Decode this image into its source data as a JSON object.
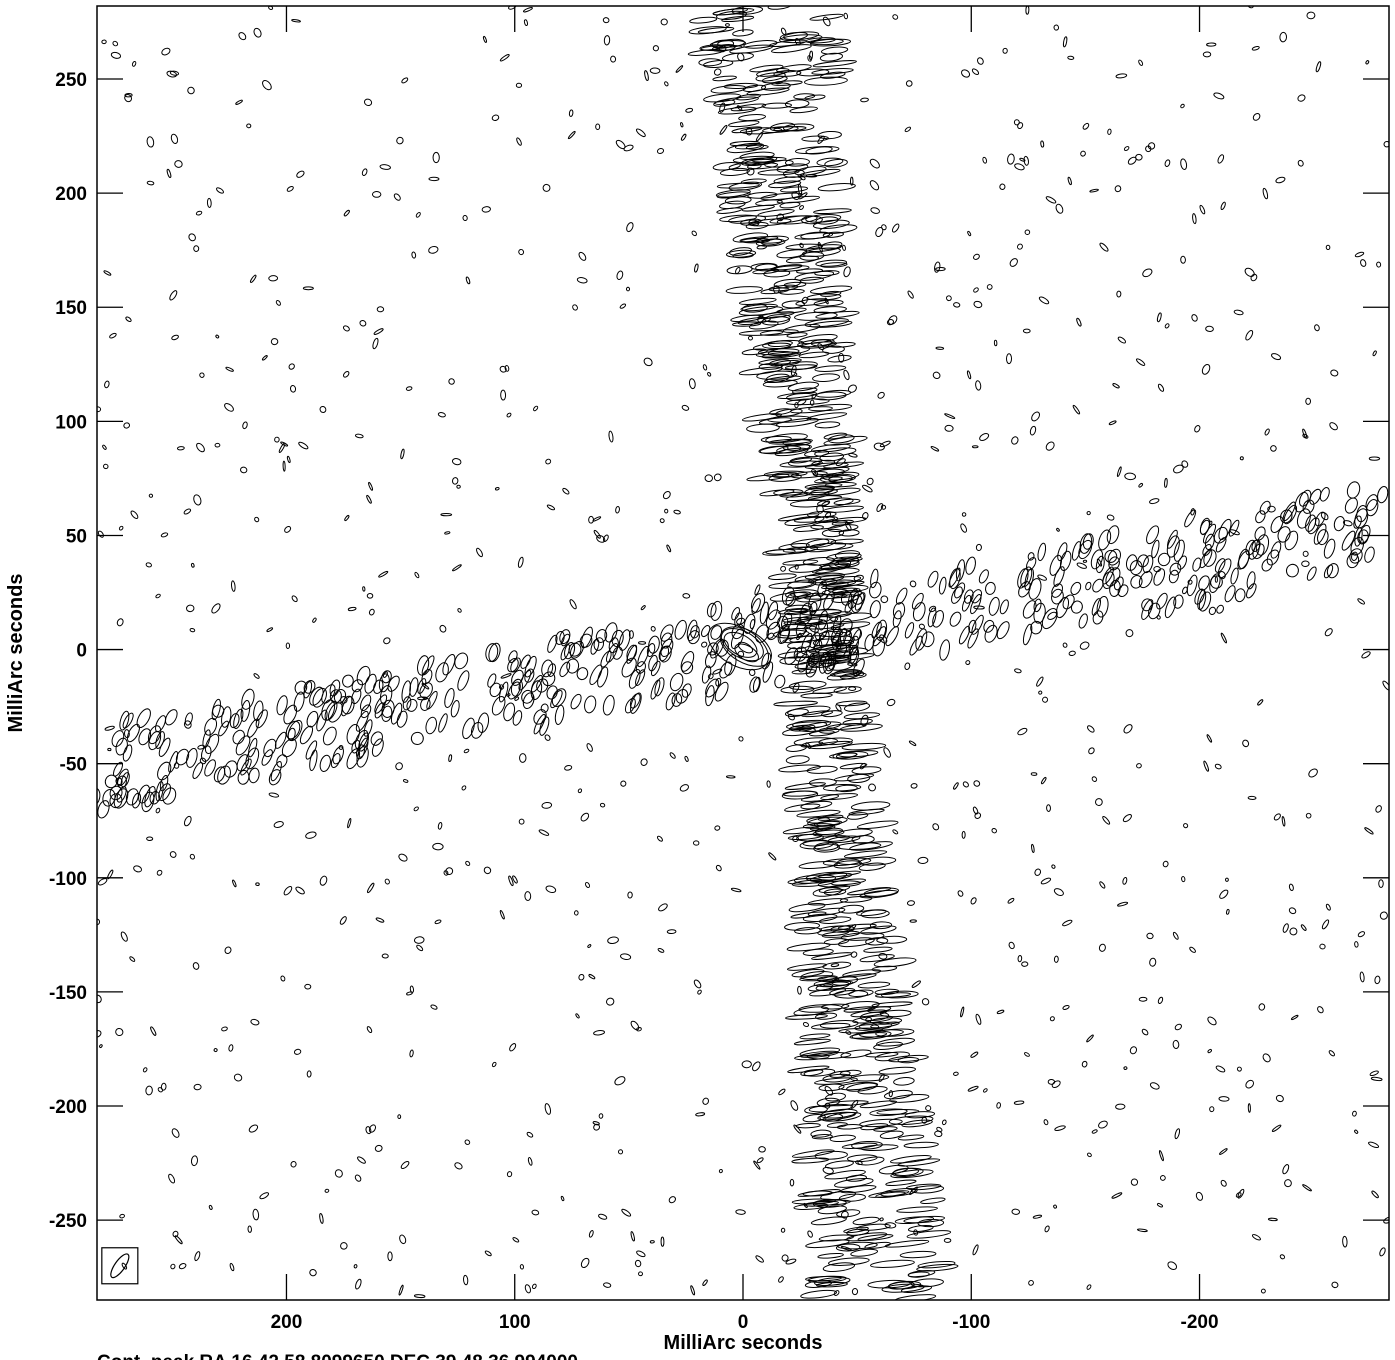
{
  "chart_data": {
    "type": "contour",
    "xlabel": "MilliArc seconds",
    "ylabel": "MilliArc seconds",
    "xlim": [
      283,
      -283
    ],
    "ylim": [
      -285,
      282
    ],
    "xticks": [
      200,
      100,
      0,
      -100,
      -200
    ],
    "xtick_labels": [
      "200",
      "100",
      "0",
      "-100",
      "-200"
    ],
    "yticks": [
      250,
      200,
      150,
      100,
      50,
      0,
      -50,
      -100,
      -150,
      -200,
      -250
    ],
    "ytick_labels": [
      "250",
      "200",
      "150",
      "100",
      "50",
      "0",
      "-50",
      "-100",
      "-150",
      "-200",
      "-250"
    ],
    "footer": "Cont_peak RA 16 42 58.8099650  DEC 39 48 36.994000",
    "beam": {
      "x": 273,
      "y": -270
    },
    "features": [
      {
        "name": "vertical sidelobe streak",
        "from": [
          -10,
          282
        ],
        "to": [
          -60,
          -285
        ]
      },
      {
        "name": "diagonal sidelobe streak",
        "from": [
          283,
          -52
        ],
        "to": [
          -283,
          55
        ]
      },
      {
        "name": "central peak",
        "at": [
          0,
          0
        ]
      }
    ]
  }
}
